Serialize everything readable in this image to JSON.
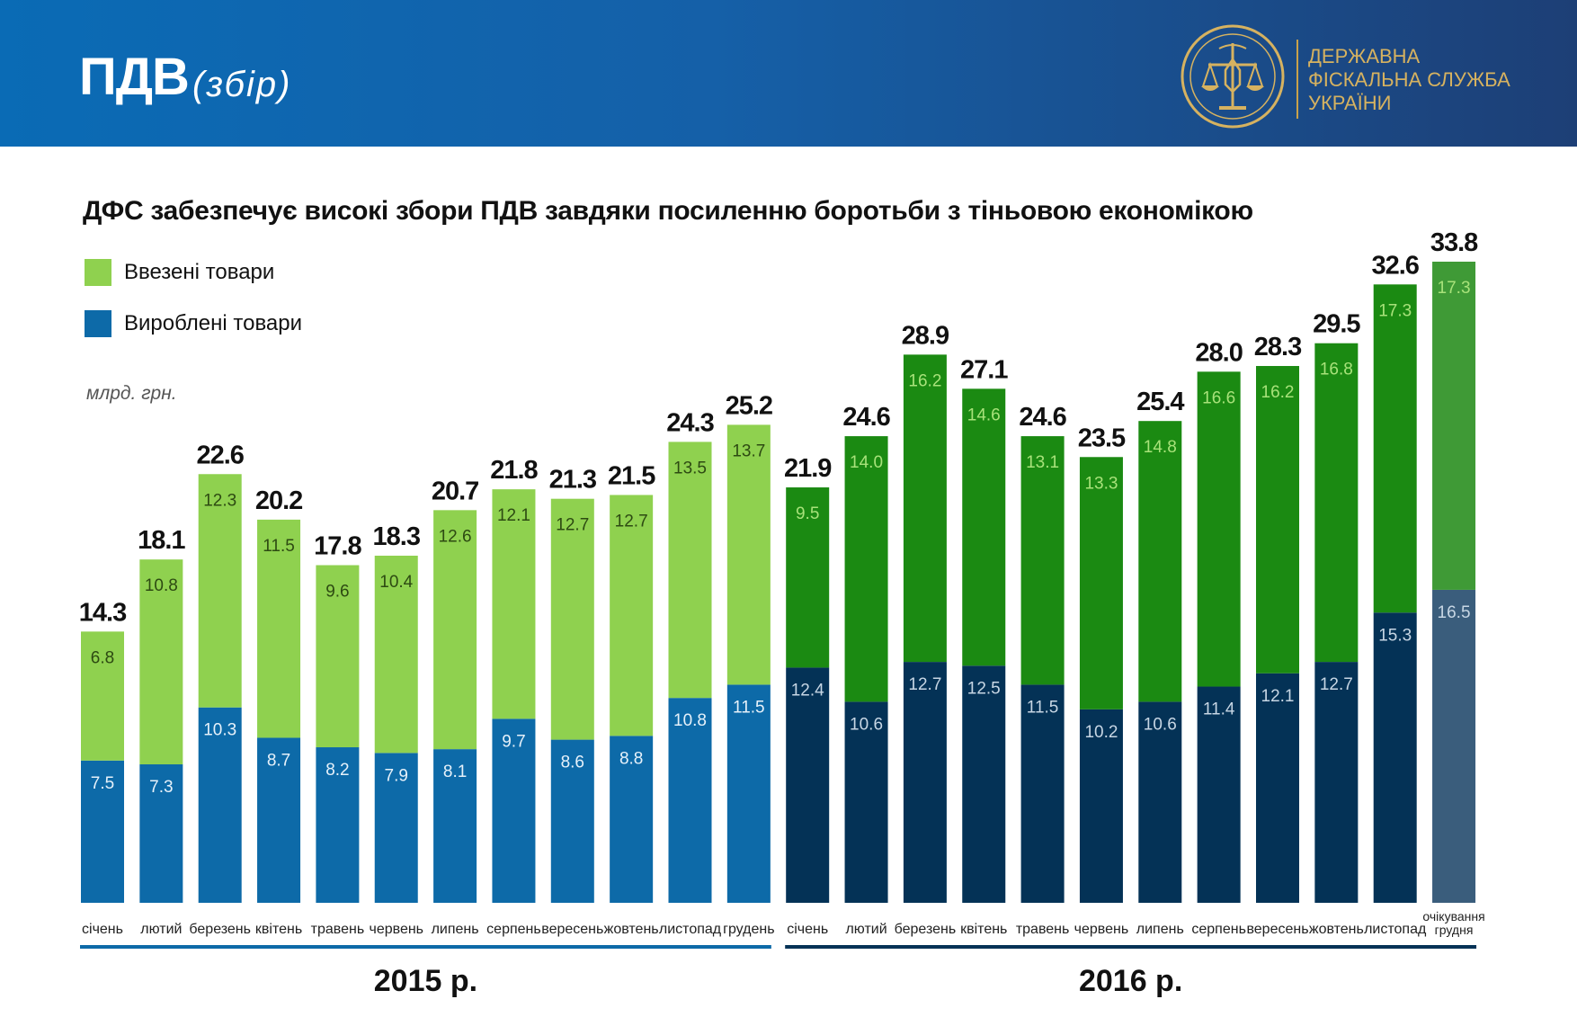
{
  "header": {
    "title": "ПДВ",
    "subtitle": "(збір)",
    "logo_lines": [
      "ДЕРЖАВНА",
      "ФІСКАЛЬНА СЛУЖБА",
      "УКРАЇНИ"
    ],
    "logo_icon": "emblem-icon"
  },
  "colors": {
    "header_start": "#0a6bb5",
    "header_end": "#1d3f76",
    "import_2015": "#8fd14f",
    "produced_2015": "#0d6aa8",
    "import_2016": "#1b8a12",
    "produced_2016": "#043256",
    "import_expected": "#3f9a36",
    "produced_expected": "#3a5d7c",
    "logo_gold": "#d6b260"
  },
  "chart_data": {
    "type": "bar",
    "stacked": true,
    "title": "ДФС забезпечує високі збори ПДВ завдяки посиленню боротьби з тіньовою економікою",
    "unit_label": "млрд. грн.",
    "legend": [
      "Ввезені товари",
      "Вироблені товари"
    ],
    "legend_position": "top-left",
    "categories": [
      "січень",
      "лютий",
      "березень",
      "квітень",
      "травень",
      "червень",
      "липень",
      "серпень",
      "вересень",
      "жовтень",
      "листопад",
      "грудень",
      "січень",
      "лютий",
      "березень",
      "квітень",
      "травень",
      "червень",
      "липень",
      "серпень",
      "вересень",
      "жовтень",
      "листопад",
      "очікування грудня"
    ],
    "groups": [
      {
        "label": "2015 р.",
        "from": 0,
        "to": 11
      },
      {
        "label": "2016 р.",
        "from": 12,
        "to": 23
      }
    ],
    "series": [
      {
        "name": "Вироблені товари",
        "values": [
          7.5,
          7.3,
          10.3,
          8.7,
          8.2,
          7.9,
          8.1,
          9.7,
          8.6,
          8.8,
          10.8,
          11.5,
          12.4,
          10.6,
          12.7,
          12.5,
          11.5,
          10.2,
          10.6,
          11.4,
          12.1,
          12.7,
          15.3,
          16.5
        ]
      },
      {
        "name": "Ввезені товари",
        "values": [
          6.8,
          10.8,
          12.3,
          11.5,
          9.6,
          10.4,
          12.6,
          12.1,
          12.7,
          12.7,
          13.5,
          13.7,
          9.5,
          14.0,
          16.2,
          14.6,
          13.1,
          13.3,
          14.8,
          16.6,
          16.2,
          16.8,
          17.3,
          17.3
        ]
      }
    ],
    "totals": [
      14.3,
      18.1,
      22.6,
      20.2,
      17.8,
      18.3,
      20.7,
      21.8,
      21.3,
      21.5,
      24.3,
      25.2,
      21.9,
      24.6,
      28.9,
      27.1,
      24.6,
      23.5,
      25.4,
      28.0,
      28.3,
      29.5,
      32.6,
      33.8
    ],
    "value_labels": {
      "totals": [
        "14.3",
        "18.1",
        "22.6",
        "20.2",
        "17.8",
        "18.3",
        "20.7",
        "21.8",
        "21.3",
        "21.5",
        "24.3",
        "25.2",
        "21.9",
        "24.6",
        "28.9",
        "27.1",
        "24.6",
        "23.5",
        "25.4",
        "28.0",
        "28.3",
        "29.5",
        "32.6",
        "33.8"
      ],
      "imported": [
        "6.8",
        "10.8",
        "12.3",
        "11.5",
        "9.6",
        "10.4",
        "12.6",
        "12.1",
        "12.7",
        "12.7",
        "13.5",
        "13.7",
        "9.5",
        "14.0",
        "16.2",
        "14.6",
        "13.1",
        "13.3",
        "14.8",
        "16.6",
        "16.2",
        "16.8",
        "17.3",
        "17.3"
      ],
      "produced": [
        "7.5",
        "7.3",
        "10.3",
        "8.7",
        "8.2",
        "7.9",
        "8.1",
        "9.7",
        "8.6",
        "8.8",
        "10.8",
        "11.5",
        "12.4",
        "10.6",
        "12.7",
        "12.5",
        "11.5",
        "10.2",
        "10.6",
        "11.4",
        "12.1",
        "12.7",
        "15.3",
        "16.5"
      ]
    },
    "ylim": [
      0,
      33.8
    ],
    "grid": false
  }
}
